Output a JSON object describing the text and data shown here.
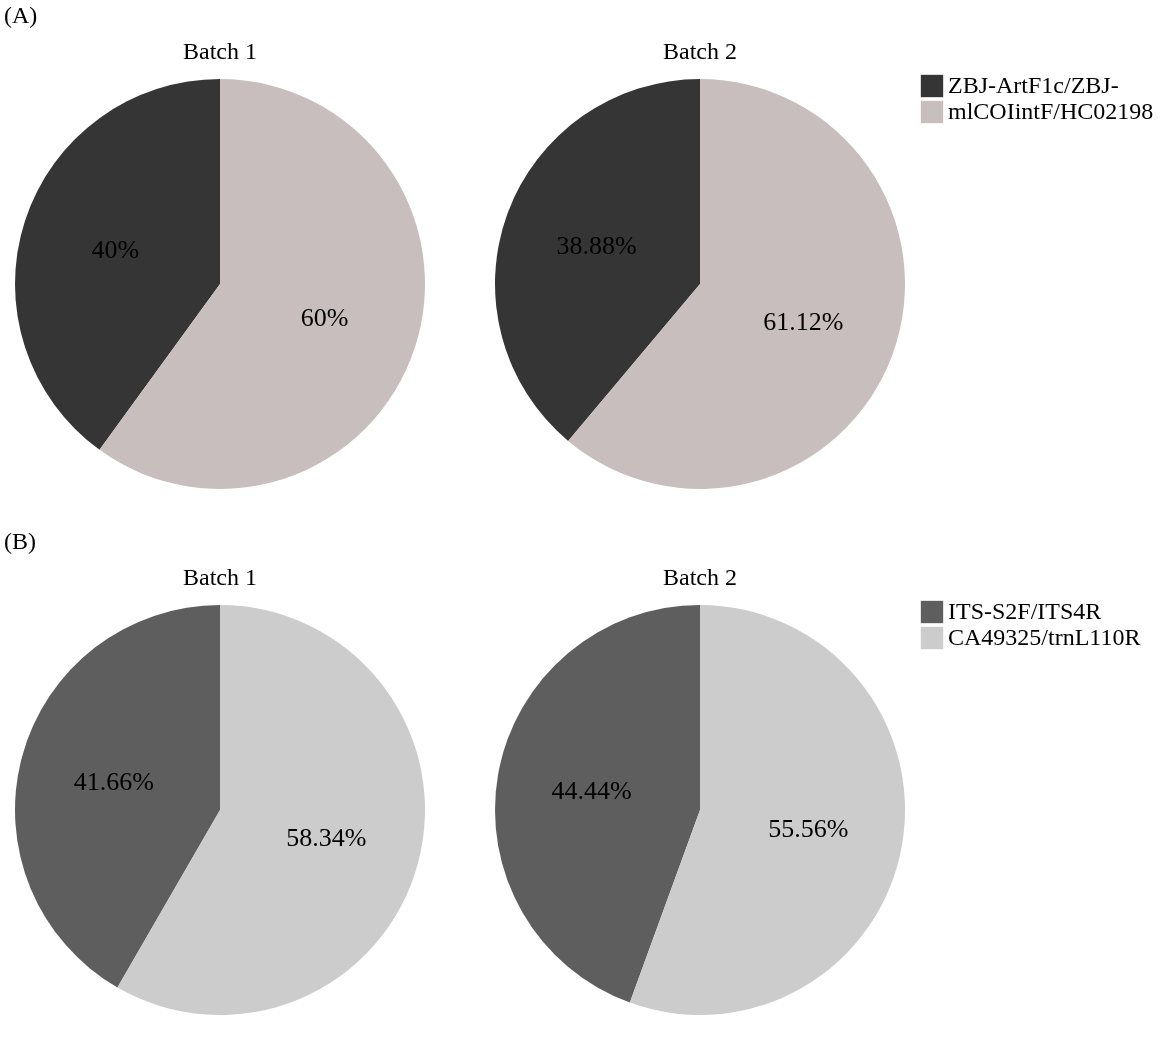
{
  "chart_data": [
    {
      "type": "pie",
      "title": "Batch 1",
      "categories": [
        null,
        null
      ],
      "values": [
        40,
        60
      ],
      "colors": [
        "#353535",
        "#c9bebe"
      ],
      "value_labels": [
        "40%",
        "60%"
      ],
      "annotations": [
        "(A)"
      ]
    },
    {
      "type": "pie",
      "title": "Batch 2",
      "categories": [
        "ZBJ-ArtF1c/ZBJ-",
        "mlCOIintF/HC02198"
      ],
      "values": [
        38.88,
        61.12
      ],
      "colors": [
        "#353535",
        "#c9bebe"
      ],
      "value_labels": [
        "38.88%",
        "61.12%"
      ],
      "legend": "right"
    },
    {
      "type": "pie",
      "title": "Batch 1",
      "categories": [
        null,
        null
      ],
      "values": [
        41.66,
        58.34
      ],
      "colors": [
        "#5e5e5e",
        "#cccccc"
      ],
      "value_labels": [
        "41.66%",
        "58.34%"
      ],
      "annotations": [
        "(B)"
      ]
    },
    {
      "type": "pie",
      "title": "Batch 2",
      "categories": [
        "ITS-S2F/ITS4R",
        "CA49325/trnL110R"
      ],
      "values": [
        44.44,
        55.56
      ],
      "colors": [
        "#5e5e5e",
        "#cccccc"
      ],
      "value_labels": [
        "44.44%",
        "55.56%"
      ],
      "legend": "right"
    }
  ]
}
